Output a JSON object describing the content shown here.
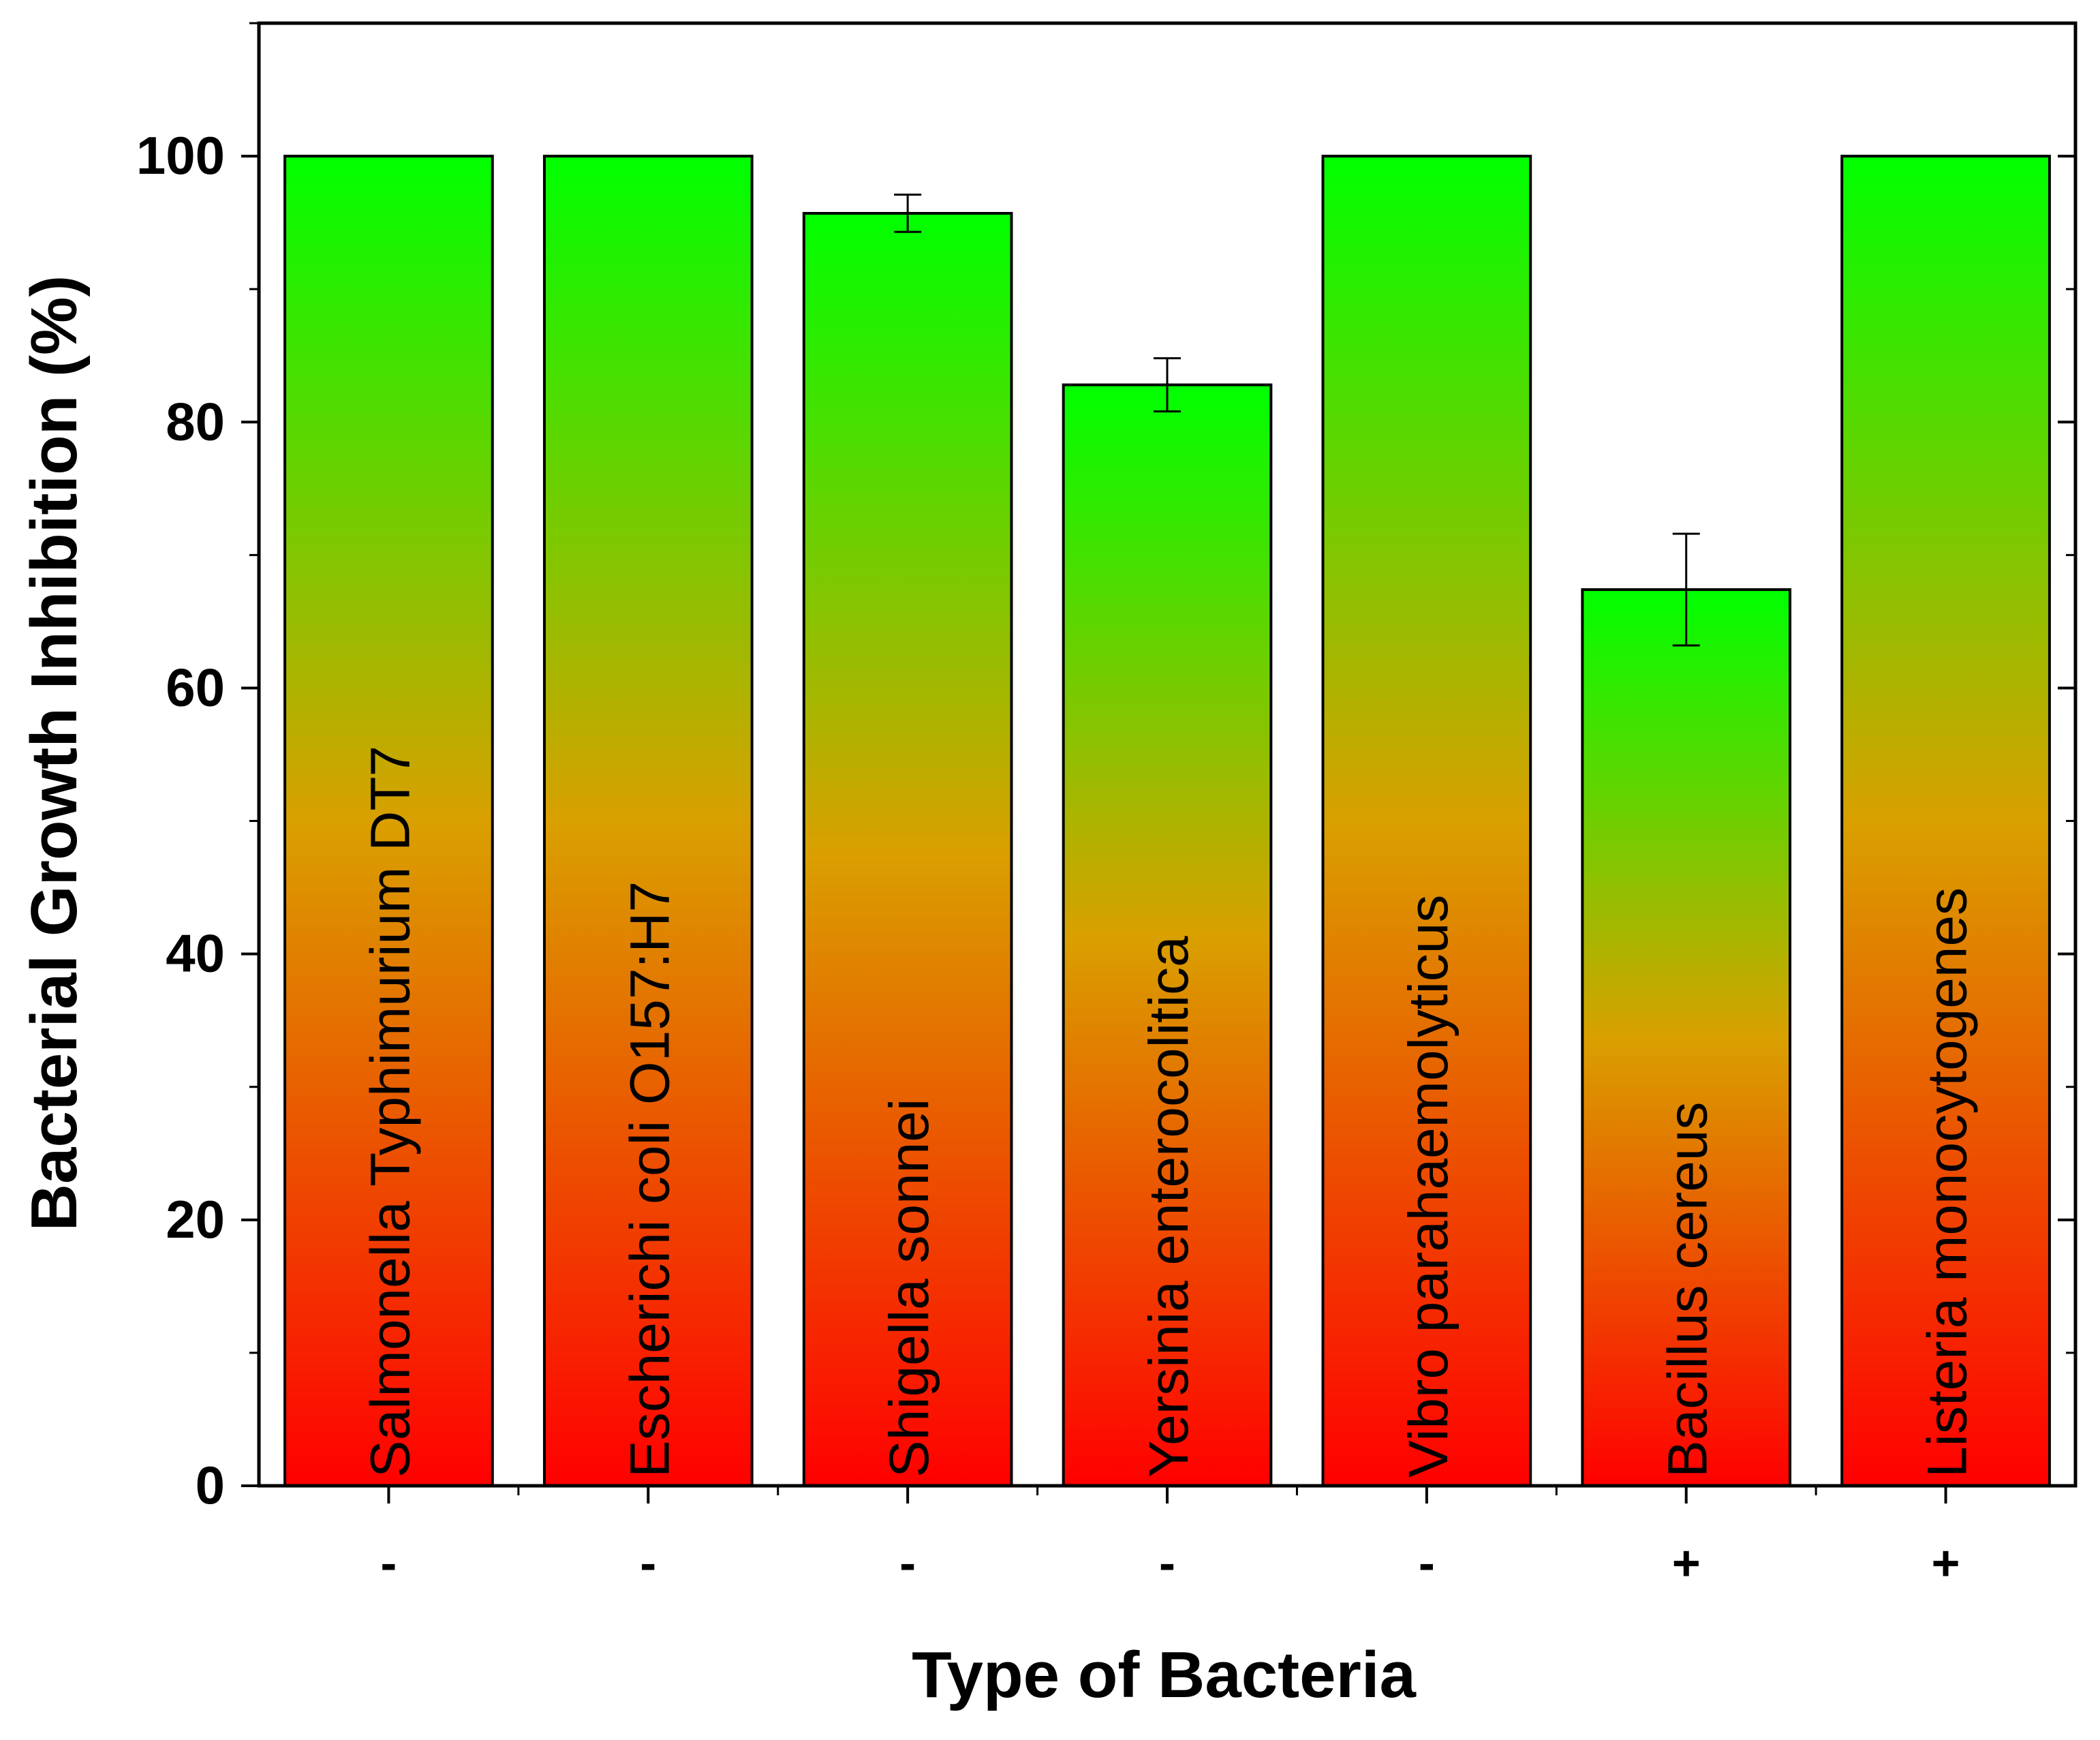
{
  "chart_data": {
    "type": "bar",
    "title": "",
    "xlabel": "Type of Bacteria",
    "ylabel": "Bacterial Growth Inhibition (%)",
    "ylim": [
      0,
      110
    ],
    "yticks": [
      0,
      20,
      40,
      60,
      80,
      100
    ],
    "grid": false,
    "fill": "vertical gradient red (bottom) to green (top)",
    "categories": [
      "Salmonella Typhimurium DT7",
      "Escherichi coli O157:H7",
      "Shigella sonnei",
      "Yersinia enterocolitica",
      "Vibro parahaemolyticus",
      "Bacillus cereus",
      "Listeria monocytogenes"
    ],
    "gram": [
      "-",
      "-",
      "-",
      "-",
      "-",
      "+",
      "+"
    ],
    "values": [
      100,
      100,
      95.7,
      82.8,
      100,
      67.4,
      100
    ],
    "errors": [
      0,
      0,
      1.4,
      2.0,
      0,
      4.2,
      0
    ],
    "colors": {
      "bottom": "#ff0000",
      "middle": "#d9a000",
      "top": "#00ff00",
      "axis": "#000000"
    }
  }
}
